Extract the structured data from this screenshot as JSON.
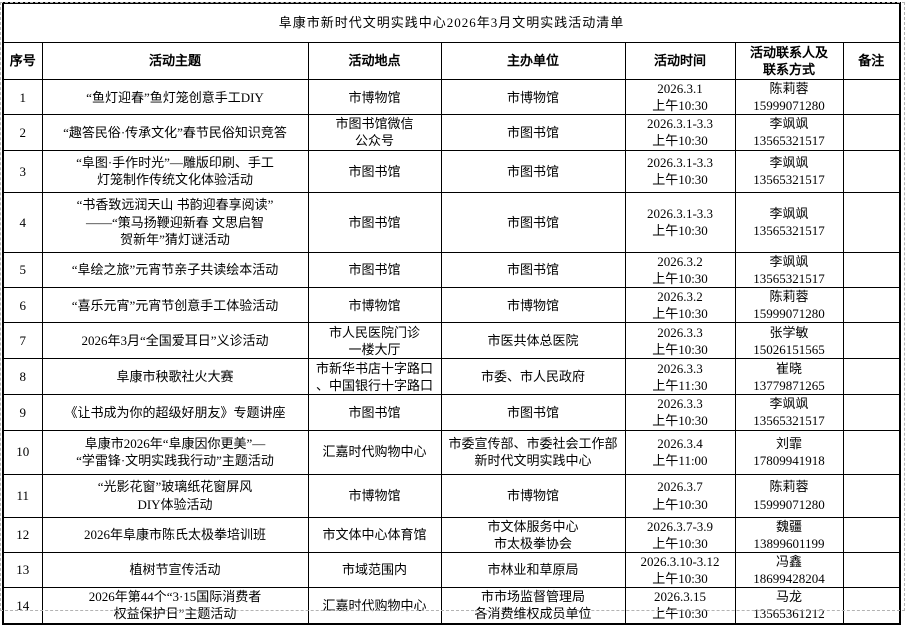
{
  "title": "阜康市新时代文明实践中心2026年3月文明实践活动清单",
  "table": {
    "columns": [
      {
        "key": "seq",
        "label": [
          "序号"
        ]
      },
      {
        "key": "theme",
        "label": [
          "活动主题"
        ]
      },
      {
        "key": "location",
        "label": [
          "活动地点"
        ]
      },
      {
        "key": "organizer",
        "label": [
          "主办单位"
        ]
      },
      {
        "key": "time",
        "label": [
          "活动时间"
        ]
      },
      {
        "key": "contact",
        "label": [
          "活动联系人及",
          "联系方式"
        ]
      },
      {
        "key": "remark",
        "label": [
          "备注"
        ]
      }
    ],
    "rows": [
      {
        "seq": "1",
        "theme": [
          "“鱼灯迎春”鱼灯笼创意手工DIY"
        ],
        "location": [
          "市博物馆"
        ],
        "organizer": [
          "市博物馆"
        ],
        "time": [
          "2026.3.1",
          "上午10:30"
        ],
        "contact": [
          "陈莉蓉",
          "15999071280"
        ],
        "remark": []
      },
      {
        "seq": "2",
        "theme": [
          "“趣答民俗·传承文化”春节民俗知识竞答"
        ],
        "location": [
          "市图书馆微信",
          "公众号"
        ],
        "organizer": [
          "市图书馆"
        ],
        "time": [
          "2026.3.1-3.3",
          "上午10:30"
        ],
        "contact": [
          "李飒飒",
          "13565321517"
        ],
        "remark": []
      },
      {
        "seq": "3",
        "theme": [
          "“阜图·手作时光”—雕版印刷、手工",
          "灯笼制作传统文化体验活动"
        ],
        "location": [
          "市图书馆"
        ],
        "organizer": [
          "市图书馆"
        ],
        "time": [
          "2026.3.1-3.3",
          "上午10:30"
        ],
        "contact": [
          "李飒飒",
          "13565321517"
        ],
        "remark": []
      },
      {
        "seq": "4",
        "theme": [
          "“书香致远润天山 书韵迎春享阅读”",
          "——“策马扬鞭迎新春 文思启智",
          "贺新年”猜灯谜活动"
        ],
        "location": [
          "市图书馆"
        ],
        "organizer": [
          "市图书馆"
        ],
        "time": [
          "2026.3.1-3.3",
          "上午10:30"
        ],
        "contact": [
          "李飒飒",
          "13565321517"
        ],
        "remark": []
      },
      {
        "seq": "5",
        "theme": [
          "“阜绘之旅”元宵节亲子共读绘本活动"
        ],
        "location": [
          "市图书馆"
        ],
        "organizer": [
          "市图书馆"
        ],
        "time": [
          "2026.3.2",
          "上午10:30"
        ],
        "contact": [
          "李飒飒",
          "13565321517"
        ],
        "remark": []
      },
      {
        "seq": "6",
        "theme": [
          "“喜乐元宵”元宵节创意手工体验活动"
        ],
        "location": [
          "市博物馆"
        ],
        "organizer": [
          "市博物馆"
        ],
        "time": [
          "2026.3.2",
          "上午10:30"
        ],
        "contact": [
          "陈莉蓉",
          "15999071280"
        ],
        "remark": []
      },
      {
        "seq": "7",
        "theme": [
          "2026年3月“全国爱耳日”义诊活动"
        ],
        "location": [
          "市人民医院门诊",
          "一楼大厅"
        ],
        "organizer": [
          "市医共体总医院"
        ],
        "time": [
          "2026.3.3",
          "上午10:30"
        ],
        "contact": [
          "张学敏",
          "15026151565"
        ],
        "remark": []
      },
      {
        "seq": "8",
        "theme": [
          "阜康市秧歌社火大赛"
        ],
        "location": [
          "市新华书店十字路口",
          "、中国银行十字路口"
        ],
        "organizer": [
          "市委、市人民政府"
        ],
        "time": [
          "2026.3.3",
          "上午11:30"
        ],
        "contact": [
          "崔晓",
          "13779871265"
        ],
        "remark": []
      },
      {
        "seq": "9",
        "theme": [
          "《让书成为你的超级好朋友》专题讲座"
        ],
        "location": [
          "市图书馆"
        ],
        "organizer": [
          "市图书馆"
        ],
        "time": [
          "2026.3.3",
          "上午10:30"
        ],
        "contact": [
          "李飒飒",
          "13565321517"
        ],
        "remark": []
      },
      {
        "seq": "10",
        "theme": [
          "阜康市2026年“阜康因你更美”—",
          "“学雷锋·文明实践我行动”主题活动"
        ],
        "location": [
          "汇嘉时代购物中心"
        ],
        "organizer": [
          "市委宣传部、市委社会工作部",
          "新时代文明实践中心"
        ],
        "time": [
          "2026.3.4",
          "上午11:00"
        ],
        "contact": [
          "刘霏",
          "17809941918"
        ],
        "remark": []
      },
      {
        "seq": "11",
        "theme": [
          "“光影花窗”玻璃纸花窗屏风",
          "DIY体验活动"
        ],
        "location": [
          "市博物馆"
        ],
        "organizer": [
          "市博物馆"
        ],
        "time": [
          "2026.3.7",
          "上午10:30"
        ],
        "contact": [
          "陈莉蓉",
          "15999071280"
        ],
        "remark": []
      },
      {
        "seq": "12",
        "theme": [
          "2026年阜康市陈氏太极拳培训班"
        ],
        "location": [
          "市文体中心体育馆"
        ],
        "organizer": [
          "市文体服务中心",
          "市太极拳协会"
        ],
        "time": [
          "2026.3.7-3.9",
          "上午10:30"
        ],
        "contact": [
          "魏疆",
          "13899601199"
        ],
        "remark": []
      },
      {
        "seq": "13",
        "theme": [
          "植树节宣传活动"
        ],
        "location": [
          "市域范围内"
        ],
        "organizer": [
          "市林业和草原局"
        ],
        "time": [
          "2026.3.10-3.12",
          "上午10:30"
        ],
        "contact": [
          "冯鑫",
          "18699428204"
        ],
        "remark": []
      },
      {
        "seq": "14",
        "theme": [
          "2026年第44个“3·15国际消费者",
          "权益保护日”主题活动"
        ],
        "location": [
          "汇嘉时代购物中心"
        ],
        "organizer": [
          "市市场监督管理局",
          "各消费维权成员单位"
        ],
        "time": [
          "2026.3.15",
          "上午10:30"
        ],
        "contact": [
          "马龙",
          "13565361212"
        ],
        "remark": []
      }
    ]
  }
}
